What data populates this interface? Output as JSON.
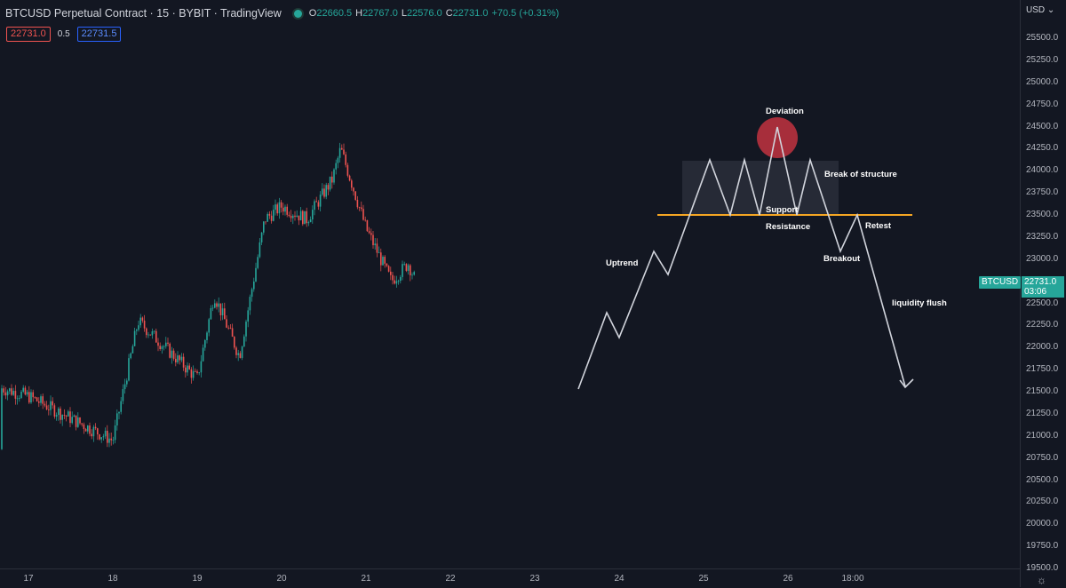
{
  "header": {
    "title": "BTCUSD Perpetual Contract · 15 · BYBIT · TradingView",
    "ohlc": [
      {
        "key": "O",
        "value": "22660.5"
      },
      {
        "key": "H",
        "value": "22767.0"
      },
      {
        "key": "L",
        "value": "22576.0"
      },
      {
        "key": "C",
        "value": "22731.0"
      }
    ],
    "change": "+70.5 (+0.31%)"
  },
  "trade": {
    "sell_price": "22731.0",
    "spread": "0.5",
    "buy_price": "22731.5"
  },
  "price_axis": {
    "currency": "USD",
    "ticks": [
      "25500.0",
      "25250.0",
      "25000.0",
      "24750.0",
      "24500.0",
      "24250.0",
      "24000.0",
      "23750.0",
      "23500.0",
      "23250.0",
      "23000.0",
      "22750.0",
      "22500.0",
      "22250.0",
      "22000.0",
      "21750.0",
      "21500.0",
      "21250.0",
      "21000.0",
      "20750.0",
      "20500.0",
      "20250.0",
      "20000.0",
      "19750.0",
      "19500.0"
    ]
  },
  "time_axis": {
    "ticks": [
      "17",
      "18",
      "19",
      "20",
      "21",
      "22",
      "23",
      "24",
      "25",
      "26",
      "18:00"
    ]
  },
  "current": {
    "symbol": "BTCUSD",
    "price": "22731.0",
    "countdown": "03:06"
  },
  "annotations": {
    "deviation": "Deviation",
    "break_of_structure": "Break of structure",
    "support": "Support",
    "resistance": "Resistance",
    "uptrend": "Uptrend",
    "breakout": "Breakout",
    "retest": "Retest",
    "liquidity_flush": "liquidity flush"
  },
  "chart_data": {
    "type": "candlestick",
    "symbol": "BTCUSD",
    "x_ticks": [
      "17",
      "18",
      "19",
      "20",
      "21",
      "22",
      "23",
      "24",
      "25",
      "26",
      "18:00"
    ],
    "y_range": [
      19500,
      25500
    ],
    "close_path_approx": [
      {
        "x": "17",
        "y": 21450
      },
      {
        "x": "18",
        "y": 20950
      },
      {
        "x": "18.3",
        "y": 22300
      },
      {
        "x": "19",
        "y": 21650
      },
      {
        "x": "19.2",
        "y": 22600
      },
      {
        "x": "19.5",
        "y": 21900
      },
      {
        "x": "19.8",
        "y": 23450
      },
      {
        "x": "20",
        "y": 23600
      },
      {
        "x": "20.3",
        "y": 23450
      },
      {
        "x": "20.6",
        "y": 23900
      },
      {
        "x": "20.7",
        "y": 24250
      },
      {
        "x": "21",
        "y": 23350
      },
      {
        "x": "21.3",
        "y": 22750
      },
      {
        "x": "21.5",
        "y": 22950
      },
      {
        "x": "21.6",
        "y": 22731
      }
    ],
    "projection": [
      {
        "x": "23.5",
        "y": 21550
      },
      {
        "x": "23.85",
        "y": 22400
      },
      {
        "x": "24",
        "y": 22100
      },
      {
        "x": "24.4",
        "y": 23100
      },
      {
        "x": "24.6",
        "y": 22850
      },
      {
        "x": "25.05",
        "y": 24100
      },
      {
        "x": "25.3",
        "y": 23500
      },
      {
        "x": "25.45",
        "y": 24100
      },
      {
        "x": "25.65",
        "y": 23500
      },
      {
        "x": "25.9",
        "y": 24500
      },
      {
        "x": "26.1",
        "y": 23500
      },
      {
        "x": "26.25",
        "y": 24100
      },
      {
        "x": "26.55",
        "y": 23100
      },
      {
        "x": "26.75",
        "y": 23500
      },
      {
        "x": "27.3",
        "y": 21550
      }
    ],
    "support_resistance_level": 23500
  },
  "colors": {
    "up": "#26a69a",
    "down": "#ef5350",
    "level": "#f5a623",
    "deviation": "#c2333f"
  }
}
